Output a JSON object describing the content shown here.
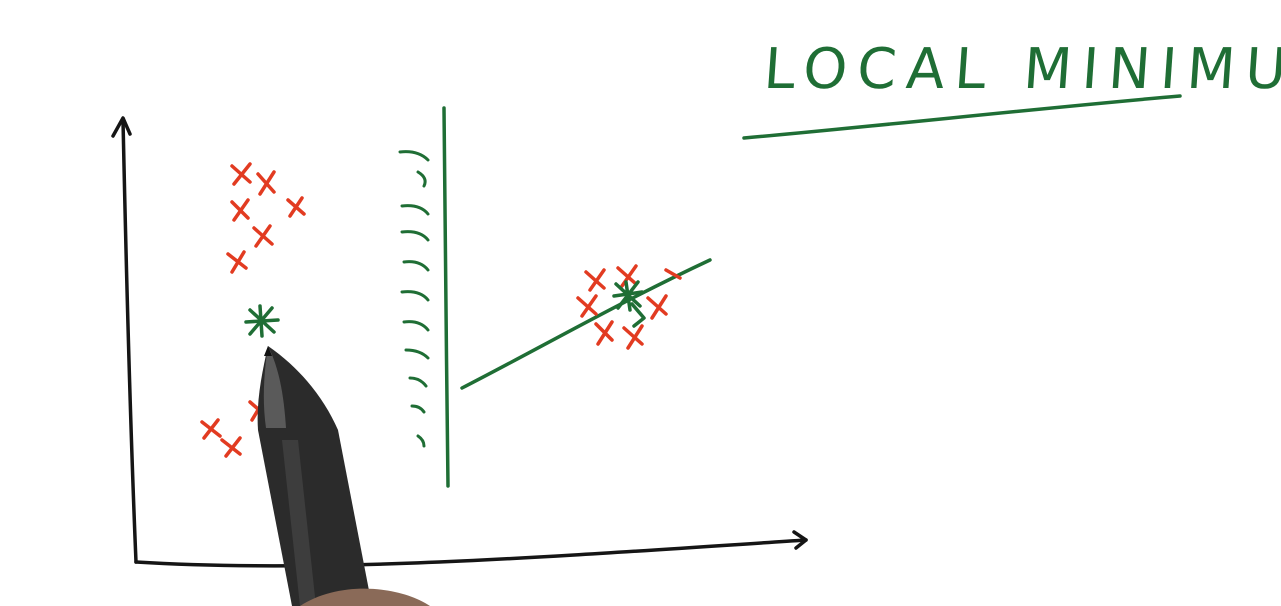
{
  "title": "LOCAL MINIMUM",
  "colors": {
    "ink_green": "#1f6e35",
    "ink_red": "#e23b21",
    "ink_black": "#151515",
    "board": "#ffffff"
  }
}
